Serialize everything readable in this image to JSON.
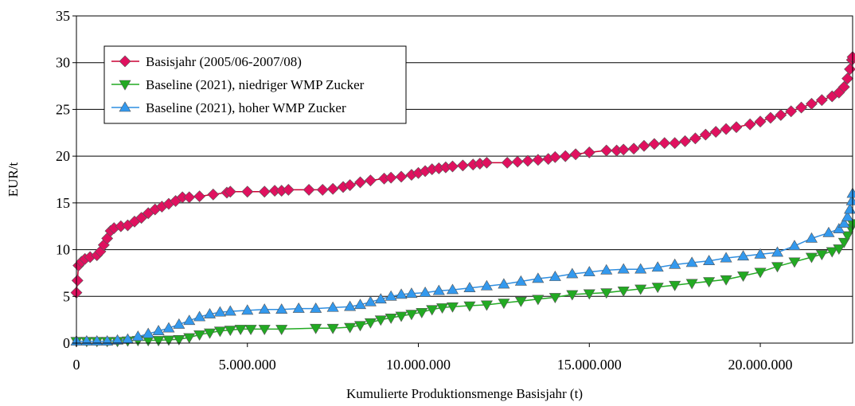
{
  "chart_data": {
    "type": "line",
    "title": "",
    "xlabel": "Kumulierte Produktionsmenge Basisjahr (t)",
    "ylabel": "EUR/t",
    "xlim": [
      0,
      22700000
    ],
    "ylim": [
      0,
      35
    ],
    "x_ticks": [
      {
        "value": 0,
        "label": "0"
      },
      {
        "value": 5000000,
        "label": "5.000.000"
      },
      {
        "value": 10000000,
        "label": "10.000.000"
      },
      {
        "value": 15000000,
        "label": "15.000.000"
      },
      {
        "value": 20000000,
        "label": "20.000.000"
      }
    ],
    "y_ticks": [
      {
        "value": 0,
        "label": "0"
      },
      {
        "value": 5,
        "label": "5"
      },
      {
        "value": 10,
        "label": "10"
      },
      {
        "value": 15,
        "label": "15"
      },
      {
        "value": 20,
        "label": "20"
      },
      {
        "value": 25,
        "label": "25"
      },
      {
        "value": 30,
        "label": "30"
      },
      {
        "value": 35,
        "label": "35"
      }
    ],
    "grid": "horizontal",
    "legend_position": "top-left",
    "series": [
      {
        "name": "Basisjahr (2005/06-2007/08)",
        "color": "#e0115f",
        "line_color": "#cc0033",
        "marker": "diamond",
        "points": [
          [
            0,
            5.4
          ],
          [
            30000,
            6.7
          ],
          [
            60000,
            8.3
          ],
          [
            150000,
            8.7
          ],
          [
            250000,
            9.0
          ],
          [
            400000,
            9.2
          ],
          [
            600000,
            9.4
          ],
          [
            700000,
            9.8
          ],
          [
            800000,
            10.5
          ],
          [
            900000,
            11.2
          ],
          [
            1000000,
            12.0
          ],
          [
            1100000,
            12.3
          ],
          [
            1300000,
            12.5
          ],
          [
            1500000,
            12.6
          ],
          [
            1700000,
            13.0
          ],
          [
            1900000,
            13.4
          ],
          [
            2100000,
            13.9
          ],
          [
            2300000,
            14.3
          ],
          [
            2500000,
            14.6
          ],
          [
            2700000,
            14.9
          ],
          [
            2900000,
            15.2
          ],
          [
            3100000,
            15.6
          ],
          [
            3300000,
            15.6
          ],
          [
            3600000,
            15.7
          ],
          [
            4000000,
            15.9
          ],
          [
            4400000,
            16.1
          ],
          [
            4500000,
            16.2
          ],
          [
            5000000,
            16.2
          ],
          [
            5500000,
            16.2
          ],
          [
            5800000,
            16.3
          ],
          [
            6000000,
            16.3
          ],
          [
            6200000,
            16.4
          ],
          [
            6800000,
            16.4
          ],
          [
            7200000,
            16.4
          ],
          [
            7500000,
            16.5
          ],
          [
            7800000,
            16.7
          ],
          [
            8000000,
            16.9
          ],
          [
            8300000,
            17.2
          ],
          [
            8600000,
            17.4
          ],
          [
            9000000,
            17.6
          ],
          [
            9200000,
            17.7
          ],
          [
            9500000,
            17.8
          ],
          [
            9800000,
            18.0
          ],
          [
            10000000,
            18.2
          ],
          [
            10200000,
            18.4
          ],
          [
            10400000,
            18.6
          ],
          [
            10600000,
            18.7
          ],
          [
            10800000,
            18.8
          ],
          [
            11000000,
            18.9
          ],
          [
            11300000,
            19.0
          ],
          [
            11600000,
            19.1
          ],
          [
            11800000,
            19.2
          ],
          [
            12000000,
            19.3
          ],
          [
            12600000,
            19.3
          ],
          [
            12900000,
            19.4
          ],
          [
            13200000,
            19.5
          ],
          [
            13500000,
            19.6
          ],
          [
            13800000,
            19.7
          ],
          [
            14000000,
            19.9
          ],
          [
            14300000,
            20.0
          ],
          [
            14600000,
            20.2
          ],
          [
            15000000,
            20.4
          ],
          [
            15500000,
            20.6
          ],
          [
            15800000,
            20.6
          ],
          [
            16000000,
            20.7
          ],
          [
            16300000,
            20.8
          ],
          [
            16600000,
            21.1
          ],
          [
            16900000,
            21.3
          ],
          [
            17200000,
            21.4
          ],
          [
            17500000,
            21.4
          ],
          [
            17800000,
            21.6
          ],
          [
            18100000,
            21.9
          ],
          [
            18400000,
            22.3
          ],
          [
            18700000,
            22.6
          ],
          [
            19000000,
            22.9
          ],
          [
            19300000,
            23.1
          ],
          [
            19700000,
            23.4
          ],
          [
            20000000,
            23.7
          ],
          [
            20300000,
            24.1
          ],
          [
            20600000,
            24.4
          ],
          [
            20900000,
            24.8
          ],
          [
            21200000,
            25.2
          ],
          [
            21500000,
            25.6
          ],
          [
            21800000,
            26.0
          ],
          [
            22100000,
            26.4
          ],
          [
            22300000,
            26.8
          ],
          [
            22450000,
            27.4
          ],
          [
            22550000,
            28.3
          ],
          [
            22620000,
            29.3
          ],
          [
            22680000,
            30.3
          ],
          [
            22700000,
            30.6
          ]
        ]
      },
      {
        "name": "Baseline (2021), niedriger WMP Zucker",
        "color": "#22aa22",
        "line_color": "#22aa22",
        "marker": "triangle-down",
        "points": [
          [
            0,
            0.2
          ],
          [
            300000,
            0.2
          ],
          [
            600000,
            0.2
          ],
          [
            900000,
            0.2
          ],
          [
            1200000,
            0.2
          ],
          [
            1500000,
            0.25
          ],
          [
            1800000,
            0.3
          ],
          [
            2100000,
            0.3
          ],
          [
            2400000,
            0.3
          ],
          [
            2700000,
            0.35
          ],
          [
            3000000,
            0.4
          ],
          [
            3300000,
            0.6
          ],
          [
            3600000,
            0.9
          ],
          [
            3900000,
            1.1
          ],
          [
            4200000,
            1.3
          ],
          [
            4500000,
            1.4
          ],
          [
            4800000,
            1.5
          ],
          [
            5100000,
            1.5
          ],
          [
            5500000,
            1.5
          ],
          [
            6000000,
            1.5
          ],
          [
            7000000,
            1.6
          ],
          [
            7500000,
            1.6
          ],
          [
            8000000,
            1.7
          ],
          [
            8300000,
            1.9
          ],
          [
            8600000,
            2.2
          ],
          [
            8900000,
            2.5
          ],
          [
            9200000,
            2.7
          ],
          [
            9500000,
            2.9
          ],
          [
            9800000,
            3.1
          ],
          [
            10100000,
            3.3
          ],
          [
            10400000,
            3.6
          ],
          [
            10700000,
            3.8
          ],
          [
            11000000,
            3.9
          ],
          [
            11500000,
            4.0
          ],
          [
            12000000,
            4.1
          ],
          [
            12500000,
            4.3
          ],
          [
            13000000,
            4.5
          ],
          [
            13500000,
            4.7
          ],
          [
            14000000,
            4.9
          ],
          [
            14500000,
            5.2
          ],
          [
            15000000,
            5.3
          ],
          [
            15500000,
            5.4
          ],
          [
            16000000,
            5.6
          ],
          [
            16500000,
            5.8
          ],
          [
            17000000,
            6.0
          ],
          [
            17500000,
            6.2
          ],
          [
            18000000,
            6.4
          ],
          [
            18500000,
            6.6
          ],
          [
            19000000,
            6.8
          ],
          [
            19500000,
            7.2
          ],
          [
            20000000,
            7.6
          ],
          [
            20500000,
            8.2
          ],
          [
            21000000,
            8.7
          ],
          [
            21500000,
            9.2
          ],
          [
            21800000,
            9.5
          ],
          [
            22100000,
            9.8
          ],
          [
            22300000,
            10.1
          ],
          [
            22450000,
            10.8
          ],
          [
            22550000,
            11.5
          ],
          [
            22650000,
            12.3
          ],
          [
            22700000,
            12.8
          ]
        ]
      },
      {
        "name": "Baseline (2021), hoher WMP Zucker",
        "color": "#3399ee",
        "line_color": "#2f8ee0",
        "marker": "triangle-up",
        "points": [
          [
            0,
            0.2
          ],
          [
            300000,
            0.2
          ],
          [
            600000,
            0.2
          ],
          [
            900000,
            0.2
          ],
          [
            1200000,
            0.3
          ],
          [
            1500000,
            0.4
          ],
          [
            1800000,
            0.7
          ],
          [
            2100000,
            1.0
          ],
          [
            2400000,
            1.3
          ],
          [
            2700000,
            1.6
          ],
          [
            3000000,
            2.0
          ],
          [
            3300000,
            2.4
          ],
          [
            3600000,
            2.8
          ],
          [
            3900000,
            3.1
          ],
          [
            4200000,
            3.3
          ],
          [
            4500000,
            3.4
          ],
          [
            5000000,
            3.5
          ],
          [
            5500000,
            3.6
          ],
          [
            6000000,
            3.6
          ],
          [
            6500000,
            3.7
          ],
          [
            7000000,
            3.7
          ],
          [
            7500000,
            3.8
          ],
          [
            8000000,
            3.9
          ],
          [
            8300000,
            4.1
          ],
          [
            8600000,
            4.4
          ],
          [
            8900000,
            4.7
          ],
          [
            9200000,
            5.0
          ],
          [
            9500000,
            5.2
          ],
          [
            9800000,
            5.3
          ],
          [
            10200000,
            5.4
          ],
          [
            10600000,
            5.6
          ],
          [
            11000000,
            5.7
          ],
          [
            11500000,
            5.9
          ],
          [
            12000000,
            6.1
          ],
          [
            12500000,
            6.3
          ],
          [
            13000000,
            6.6
          ],
          [
            13500000,
            6.9
          ],
          [
            14000000,
            7.1
          ],
          [
            14500000,
            7.4
          ],
          [
            15000000,
            7.6
          ],
          [
            15500000,
            7.8
          ],
          [
            16000000,
            7.9
          ],
          [
            16500000,
            7.9
          ],
          [
            17000000,
            8.1
          ],
          [
            17500000,
            8.4
          ],
          [
            18000000,
            8.6
          ],
          [
            18500000,
            8.8
          ],
          [
            19000000,
            9.1
          ],
          [
            19500000,
            9.3
          ],
          [
            20000000,
            9.5
          ],
          [
            20500000,
            9.7
          ],
          [
            21000000,
            10.4
          ],
          [
            21500000,
            11.2
          ],
          [
            22000000,
            11.8
          ],
          [
            22300000,
            12.2
          ],
          [
            22450000,
            12.8
          ],
          [
            22550000,
            13.5
          ],
          [
            22620000,
            14.3
          ],
          [
            22680000,
            15.2
          ],
          [
            22700000,
            16.0
          ]
        ]
      }
    ]
  }
}
